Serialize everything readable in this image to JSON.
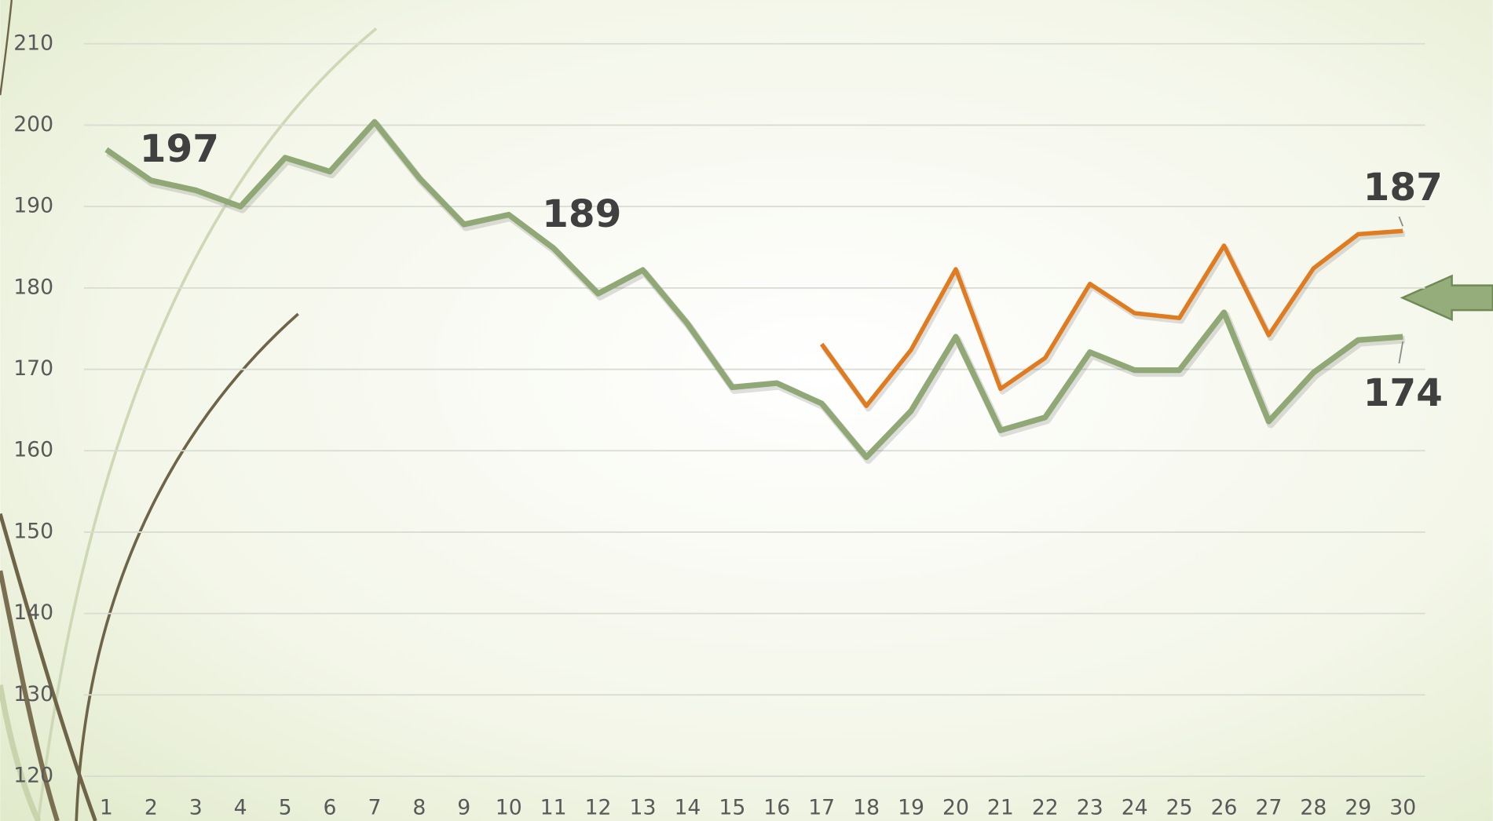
{
  "chart_data": {
    "type": "line",
    "categories": [
      "1",
      "2",
      "3",
      "4",
      "5",
      "6",
      "7",
      "8",
      "9",
      "10",
      "11",
      "12",
      "13",
      "14",
      "15",
      "16",
      "17",
      "18",
      "19",
      "20",
      "21",
      "22",
      "23",
      "24",
      "25",
      "26",
      "27",
      "28",
      "29",
      "30"
    ],
    "series": [
      {
        "color": "#8fa876",
        "values": [
          197,
          193.2,
          192,
          190,
          196,
          194.3,
          200.4,
          193.5,
          187.8,
          189,
          184.9,
          179.3,
          182.2,
          175.6,
          167.8,
          168.3,
          165.8,
          159.2,
          164.9,
          174,
          162.5,
          164.1,
          172.1,
          169.9,
          169.9,
          177,
          163.6,
          169.6,
          173.6,
          174
        ],
        "labeled": [
          0,
          9,
          29
        ]
      },
      {
        "color": "#e07b1f",
        "values": [
          null,
          null,
          null,
          null,
          null,
          null,
          null,
          null,
          null,
          null,
          null,
          null,
          null,
          null,
          null,
          null,
          173.1,
          165.5,
          172.4,
          182.3,
          167.6,
          171.4,
          180.5,
          176.9,
          176.3,
          185.2,
          174.2,
          182.4,
          186.6,
          187
        ],
        "labeled": [
          29
        ]
      }
    ],
    "ylim": [
      120,
      210
    ],
    "yticks": [
      120,
      130,
      140,
      150,
      160,
      170,
      180,
      190,
      200,
      210
    ],
    "grid": true
  }
}
